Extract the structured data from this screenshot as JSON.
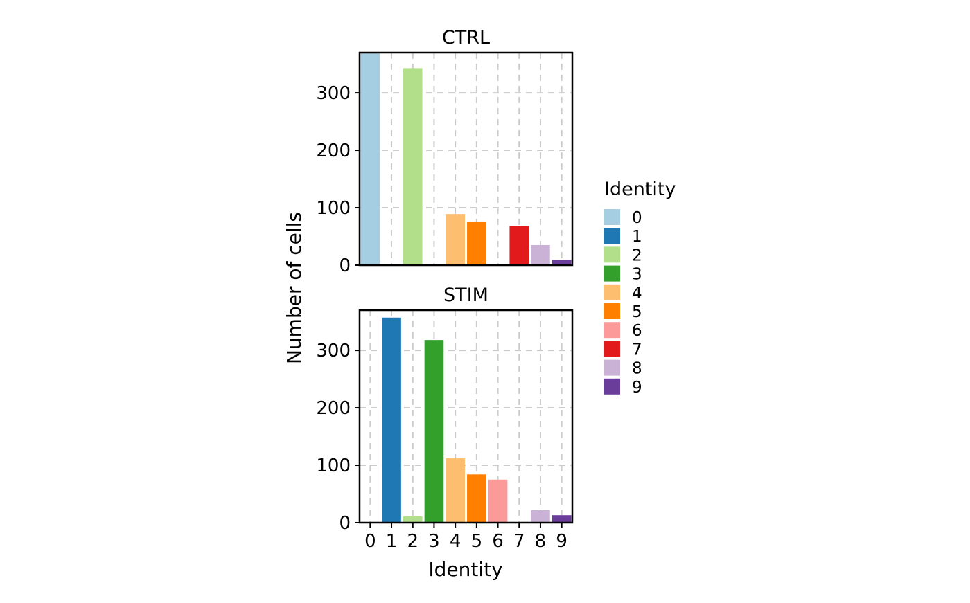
{
  "chart_data": {
    "type": "bar",
    "categories": [
      "0",
      "1",
      "2",
      "3",
      "4",
      "5",
      "6",
      "7",
      "8",
      "9"
    ],
    "xlabel": "Identity",
    "ylabel": "Number of cells",
    "ylim": [
      0,
      370
    ],
    "yticks": [
      0,
      100,
      200,
      300
    ],
    "grid": "dashed",
    "legend": {
      "title": "Identity",
      "placement": "right",
      "entries": [
        "0",
        "1",
        "2",
        "3",
        "4",
        "5",
        "6",
        "7",
        "8",
        "9"
      ]
    },
    "colors": [
      "#a6cee3",
      "#1f78b4",
      "#b2df8a",
      "#33a02c",
      "#fdbf6f",
      "#ff7f00",
      "#fb9a99",
      "#e31a1c",
      "#cab2d6",
      "#6a3d9a"
    ],
    "panels": [
      {
        "title": "CTRL",
        "values": [
          372,
          0,
          343,
          0,
          89,
          76,
          0,
          68,
          35,
          9
        ]
      },
      {
        "title": "STIM",
        "values": [
          0,
          357,
          11,
          318,
          112,
          84,
          75,
          0,
          22,
          13
        ]
      }
    ]
  }
}
